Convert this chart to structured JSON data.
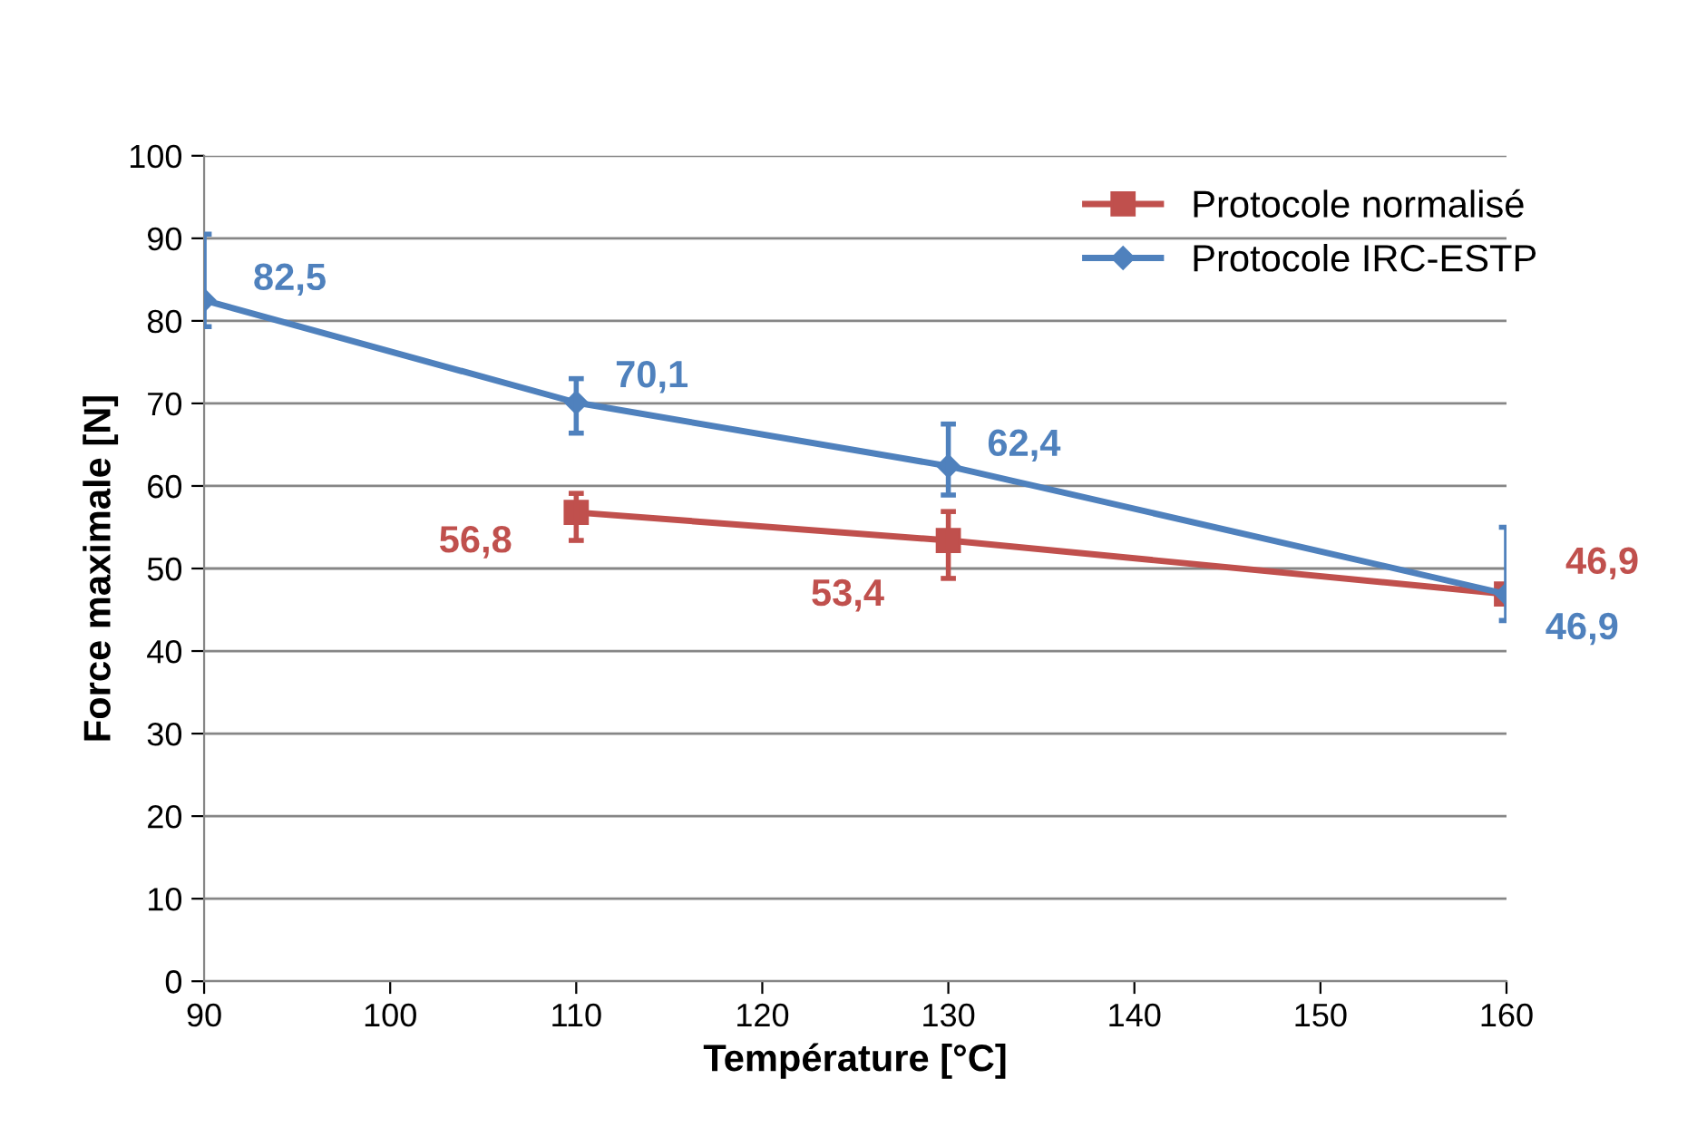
{
  "chart_data": {
    "type": "line",
    "xlabel": "Température [°C]",
    "ylabel": "Force maximale [N]",
    "series": [
      {
        "name": "Protocole normalisé",
        "color": "#c0504d",
        "marker": "square",
        "x": [
          110,
          130,
          160
        ],
        "values": [
          56.8,
          53.4,
          46.9
        ],
        "errors": [
          [
            53.4,
            59.1
          ],
          [
            48.8,
            56.9
          ],
          null
        ],
        "value_labels": [
          "56,8",
          "53,4",
          "46,9"
        ]
      },
      {
        "name": "Protocole IRC-ESTP",
        "color": "#4f81bd",
        "marker": "diamond",
        "x": [
          90,
          110,
          130,
          160
        ],
        "values": [
          82.5,
          70.1,
          62.4,
          46.9
        ],
        "errors": [
          [
            79.3,
            90.5
          ],
          [
            66.4,
            73.0
          ],
          [
            58.9,
            67.5
          ],
          [
            43.7,
            55.0
          ]
        ],
        "value_labels": [
          "82,5",
          "70,1",
          "62,4",
          "46,9"
        ]
      }
    ],
    "xlim": [
      90,
      160
    ],
    "xticks": [
      90,
      100,
      110,
      120,
      130,
      140,
      150,
      160
    ],
    "ylim": [
      0,
      100
    ],
    "yticks": [
      0,
      10,
      20,
      30,
      40,
      50,
      60,
      70,
      80,
      90,
      100
    ],
    "grid": "y",
    "legend": "top right",
    "line_style": "solid"
  }
}
